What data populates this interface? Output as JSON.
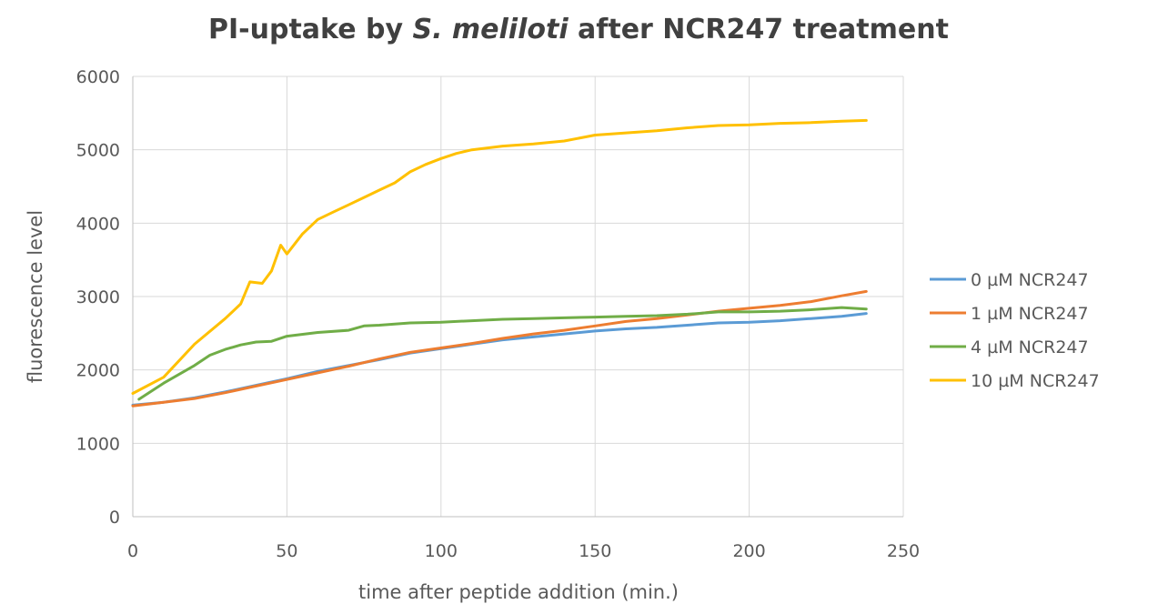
{
  "chart_data": {
    "type": "line",
    "title_parts": {
      "prefix": "PI-uptake by ",
      "italic": "S. meliloti",
      "suffix": " after NCR247 treatment"
    },
    "xlabel": "time after peptide addition (min.)",
    "ylabel": "fluorescence level",
    "xlim": [
      0,
      250
    ],
    "ylim": [
      0,
      6000
    ],
    "x_ticks": [
      0,
      50,
      100,
      150,
      200,
      250
    ],
    "y_ticks": [
      0,
      1000,
      2000,
      3000,
      4000,
      5000,
      6000
    ],
    "x_tick_labels": [
      "0",
      "50",
      "100",
      "150",
      "200",
      "250"
    ],
    "y_tick_labels": [
      "0",
      "1000",
      "2000",
      "3000",
      "4000",
      "5000",
      "6000"
    ],
    "grid": true,
    "legend_position": "right",
    "series": [
      {
        "name": "0 µM NCR247",
        "color": "#5b9bd5",
        "points": [
          [
            0,
            1520
          ],
          [
            10,
            1560
          ],
          [
            20,
            1620
          ],
          [
            30,
            1700
          ],
          [
            40,
            1790
          ],
          [
            50,
            1880
          ],
          [
            60,
            1980
          ],
          [
            70,
            2060
          ],
          [
            80,
            2140
          ],
          [
            90,
            2230
          ],
          [
            100,
            2290
          ],
          [
            110,
            2350
          ],
          [
            120,
            2410
          ],
          [
            130,
            2450
          ],
          [
            140,
            2490
          ],
          [
            150,
            2530
          ],
          [
            160,
            2560
          ],
          [
            170,
            2580
          ],
          [
            180,
            2610
          ],
          [
            190,
            2640
          ],
          [
            200,
            2650
          ],
          [
            210,
            2670
          ],
          [
            220,
            2700
          ],
          [
            230,
            2730
          ],
          [
            238,
            2770
          ]
        ]
      },
      {
        "name": "1 µM NCR247",
        "color": "#ed7d31",
        "points": [
          [
            0,
            1510
          ],
          [
            10,
            1560
          ],
          [
            20,
            1610
          ],
          [
            30,
            1690
          ],
          [
            40,
            1780
          ],
          [
            50,
            1870
          ],
          [
            60,
            1960
          ],
          [
            70,
            2050
          ],
          [
            80,
            2150
          ],
          [
            90,
            2240
          ],
          [
            100,
            2300
          ],
          [
            110,
            2360
          ],
          [
            120,
            2430
          ],
          [
            130,
            2490
          ],
          [
            140,
            2540
          ],
          [
            150,
            2600
          ],
          [
            160,
            2660
          ],
          [
            170,
            2700
          ],
          [
            180,
            2750
          ],
          [
            190,
            2800
          ],
          [
            200,
            2840
          ],
          [
            210,
            2880
          ],
          [
            220,
            2930
          ],
          [
            230,
            3010
          ],
          [
            238,
            3070
          ]
        ]
      },
      {
        "name": " 4 µM NCR247",
        "color": "#70ad47",
        "points": [
          [
            2,
            1600
          ],
          [
            10,
            1820
          ],
          [
            20,
            2060
          ],
          [
            25,
            2200
          ],
          [
            30,
            2280
          ],
          [
            35,
            2340
          ],
          [
            40,
            2380
          ],
          [
            45,
            2390
          ],
          [
            50,
            2460
          ],
          [
            60,
            2510
          ],
          [
            70,
            2540
          ],
          [
            75,
            2600
          ],
          [
            80,
            2610
          ],
          [
            90,
            2640
          ],
          [
            100,
            2650
          ],
          [
            110,
            2670
          ],
          [
            120,
            2690
          ],
          [
            130,
            2700
          ],
          [
            140,
            2710
          ],
          [
            150,
            2720
          ],
          [
            160,
            2730
          ],
          [
            170,
            2740
          ],
          [
            180,
            2760
          ],
          [
            190,
            2790
          ],
          [
            200,
            2790
          ],
          [
            210,
            2800
          ],
          [
            220,
            2820
          ],
          [
            230,
            2850
          ],
          [
            238,
            2830
          ]
        ]
      },
      {
        "name": "10 µM NCR247",
        "color": "#ffc000",
        "points": [
          [
            0,
            1680
          ],
          [
            10,
            1900
          ],
          [
            20,
            2350
          ],
          [
            30,
            2700
          ],
          [
            35,
            2900
          ],
          [
            38,
            3200
          ],
          [
            42,
            3180
          ],
          [
            45,
            3350
          ],
          [
            48,
            3700
          ],
          [
            50,
            3580
          ],
          [
            55,
            3850
          ],
          [
            60,
            4050
          ],
          [
            65,
            4150
          ],
          [
            70,
            4250
          ],
          [
            75,
            4350
          ],
          [
            80,
            4450
          ],
          [
            85,
            4550
          ],
          [
            90,
            4700
          ],
          [
            95,
            4800
          ],
          [
            100,
            4880
          ],
          [
            105,
            4950
          ],
          [
            110,
            5000
          ],
          [
            120,
            5050
          ],
          [
            130,
            5080
          ],
          [
            140,
            5120
          ],
          [
            150,
            5200
          ],
          [
            160,
            5230
          ],
          [
            170,
            5260
          ],
          [
            180,
            5300
          ],
          [
            190,
            5330
          ],
          [
            200,
            5340
          ],
          [
            210,
            5360
          ],
          [
            220,
            5370
          ],
          [
            230,
            5390
          ],
          [
            238,
            5400
          ]
        ]
      }
    ]
  }
}
